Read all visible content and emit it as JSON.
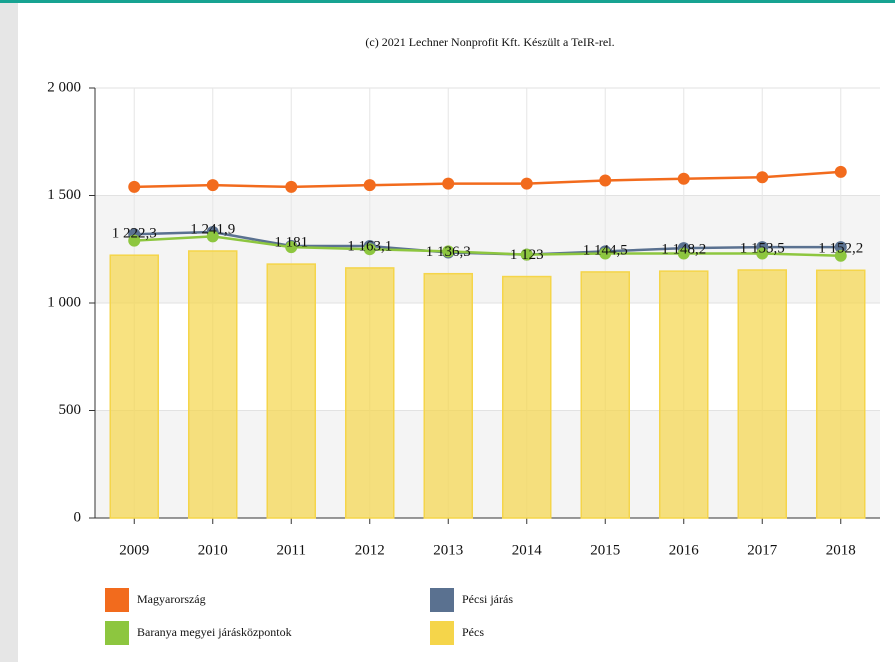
{
  "chart_data": {
    "type": "bar",
    "subtitle": "(c) 2021 Lechner Nonprofit Kft. Készült a TeIR-rel.",
    "categories": [
      "2009",
      "2010",
      "2011",
      "2012",
      "2013",
      "2014",
      "2015",
      "2016",
      "2017",
      "2018"
    ],
    "series": [
      {
        "name": "Pécs",
        "type": "bar",
        "color": "#f5d54a",
        "values": [
          1222.3,
          1241.9,
          1181,
          1163.1,
          1136.3,
          1123,
          1144.5,
          1148.2,
          1153.5,
          1152.2
        ],
        "value_labels": [
          "1 222,3",
          "1 241,9",
          "1 181",
          "1 163,1",
          "1 136,3",
          "1 123",
          "1 144,5",
          "1 148,2",
          "1 153,5",
          "1 152,2"
        ]
      },
      {
        "name": "Magyarország",
        "type": "line",
        "color": "#f26b1d",
        "values": [
          1540,
          1548,
          1540,
          1548,
          1555,
          1555,
          1570,
          1578,
          1585,
          1610
        ]
      },
      {
        "name": "Pécsi járás",
        "type": "line",
        "color": "#5a7190",
        "values": [
          1320,
          1330,
          1265,
          1265,
          1235,
          1225,
          1240,
          1255,
          1260,
          1260
        ]
      },
      {
        "name": "Baranya megyei járásközpontok",
        "type": "line",
        "color": "#8dc63f",
        "values": [
          1290,
          1310,
          1260,
          1250,
          1240,
          1225,
          1230,
          1230,
          1230,
          1220
        ]
      }
    ],
    "ylim": [
      0,
      2000
    ],
    "yticks": [
      0,
      500,
      {
        "value": 1000,
        "label": "1 000"
      },
      {
        "value": 1500,
        "label": "1 500"
      },
      {
        "value": 2000,
        "label": "2 000"
      }
    ],
    "grid": true
  }
}
